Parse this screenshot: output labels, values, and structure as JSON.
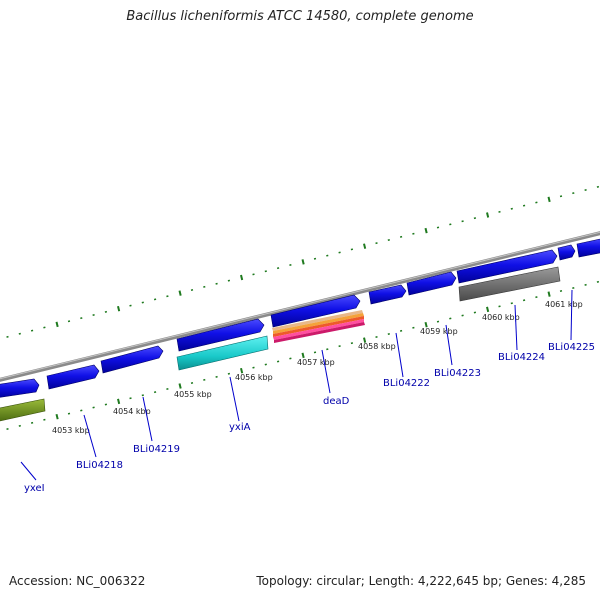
{
  "title": "Bacillus licheniformis ATCC 14580, complete genome",
  "footer": {
    "accession": "Accession: NC_006322",
    "topology": "Topology: circular; Length: 4,222,645 bp; Genes: 4,285"
  },
  "scale_labels": [
    "4053 kbp",
    "4054 kbp",
    "4055 kbp",
    "4056 kbp",
    "4057 kbp",
    "4058 kbp",
    "4059 kbp",
    "4060 kbp",
    "4061 kbp"
  ],
  "gene_labels": [
    "yxeI",
    "BLi04218",
    "BLi04219",
    "yxiA",
    "deaD",
    "BLi04222",
    "BLi04223",
    "BLi04224",
    "BLi04225"
  ],
  "colors": {
    "gene_forward": "#1010e6",
    "gene_reverse": "#1a1ae8",
    "backbone": "#8a8a8a",
    "tick": "#1f7a1f",
    "cyan_feature": "#19c9c9",
    "olive_feature": "#6f8f1f",
    "grey_feature": "#6e6e6e",
    "label_text": "#0000aa"
  }
}
